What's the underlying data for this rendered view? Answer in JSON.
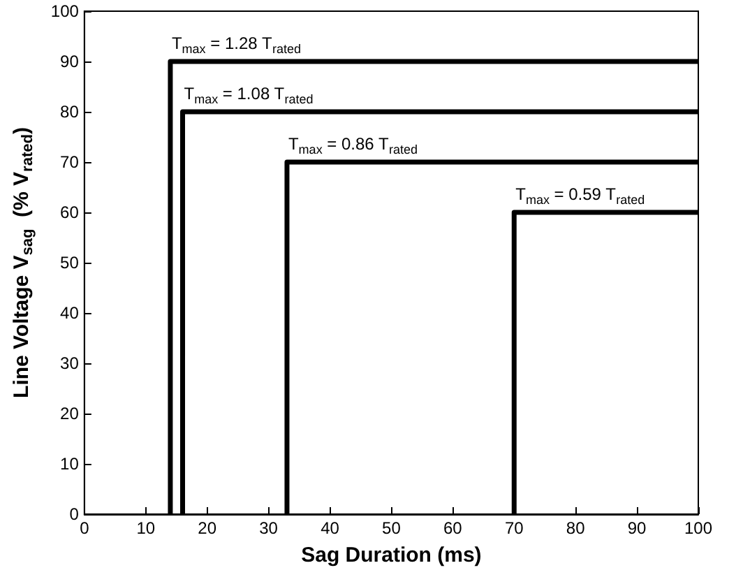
{
  "chart_data": {
    "type": "line",
    "xlabel": "Sag Duration (ms)",
    "ylabel": "Line Voltage V$_{sag}$  (% V$_{rated}$)",
    "series": [
      {
        "name": "T$_{max}$ = 1.28 T$_{rated}$",
        "color": "#000000",
        "x": [
          14,
          14,
          100
        ],
        "values": [
          0,
          90,
          90
        ]
      },
      {
        "name": "T$_{max}$ = 1.08 T$_{rated}$",
        "color": "#000000",
        "x": [
          16,
          16,
          100
        ],
        "values": [
          0,
          80,
          80
        ]
      },
      {
        "name": "T$_{max}$ = 0.86 T$_{rated}$",
        "color": "#000000",
        "x": [
          33,
          33,
          100
        ],
        "values": [
          0,
          70,
          70
        ]
      },
      {
        "name": "T$_{max}$ = 0.59 T$_{rated}$",
        "color": "#000000",
        "x": [
          70,
          70,
          100
        ],
        "values": [
          0,
          60,
          60
        ]
      }
    ],
    "xlim": [
      0,
      100
    ],
    "xticks": [
      0,
      10,
      20,
      30,
      40,
      50,
      60,
      70,
      80,
      90,
      100
    ],
    "ylim": [
      0,
      100
    ],
    "yticks": [
      0,
      10,
      20,
      30,
      40,
      50,
      60,
      70,
      80,
      90,
      100
    ],
    "grid": false,
    "legend": false,
    "marker": "none",
    "line_style": "solid"
  }
}
